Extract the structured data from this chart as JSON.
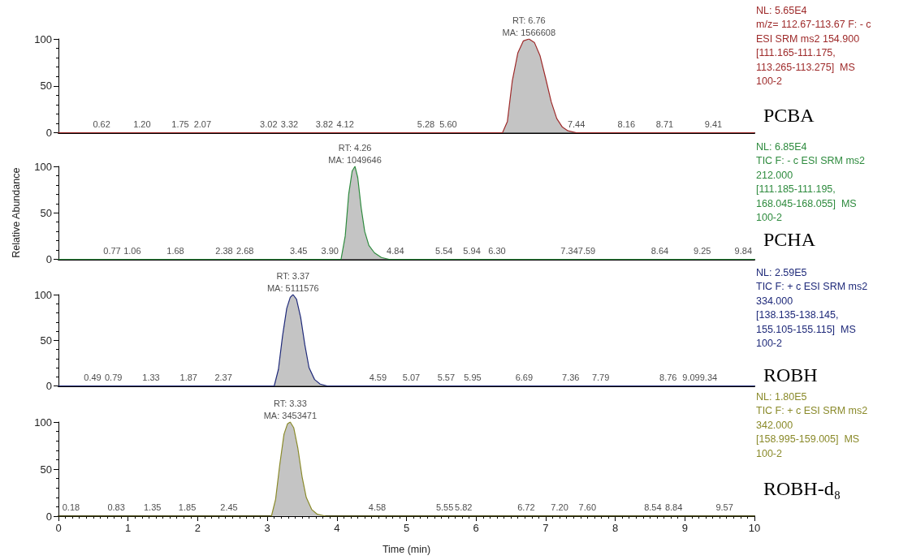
{
  "chart_data": [
    {
      "type": "area",
      "x": [
        0,
        6.38,
        6.45,
        6.52,
        6.6,
        6.68,
        6.76,
        6.84,
        6.92,
        7.0,
        7.08,
        7.16,
        7.24,
        7.32,
        7.44,
        10
      ],
      "xlim": [
        0,
        10
      ],
      "xticks": [
        0,
        1,
        2,
        3,
        4,
        5,
        6,
        7,
        8,
        9,
        10
      ],
      "ylim": [
        0,
        100
      ],
      "yticks": [
        0,
        50,
        100
      ],
      "tick_labels": "y",
      "grid": false,
      "legend": false,
      "series": [
        {
          "name": "PCBA",
          "color": "#9e2a2a",
          "values": [
            0,
            0,
            12,
            55,
            85,
            98,
            100,
            96,
            82,
            58,
            33,
            15,
            6,
            2,
            0,
            0
          ]
        }
      ],
      "annotations": [
        {
          "text": "RT: 6.76",
          "x": 6.76,
          "y": 100
        },
        {
          "text": "MA: 1566608",
          "x": 6.76,
          "y": 100
        },
        {
          "text": "0.62",
          "x": 0.62,
          "y": 2
        },
        {
          "text": "1.20",
          "x": 1.2,
          "y": 2
        },
        {
          "text": "1.75",
          "x": 1.75,
          "y": 2
        },
        {
          "text": "2.07",
          "x": 2.07,
          "y": 2
        },
        {
          "text": "3.02",
          "x": 3.02,
          "y": 2
        },
        {
          "text": "3.32",
          "x": 3.32,
          "y": 2
        },
        {
          "text": "3.82",
          "x": 3.82,
          "y": 2
        },
        {
          "text": "4.12",
          "x": 4.12,
          "y": 2
        },
        {
          "text": "5.28",
          "x": 5.28,
          "y": 2
        },
        {
          "text": "5.60",
          "x": 5.6,
          "y": 2
        },
        {
          "text": "7.44",
          "x": 7.44,
          "y": 2
        },
        {
          "text": "8.16",
          "x": 8.16,
          "y": 2
        },
        {
          "text": "8.71",
          "x": 8.71,
          "y": 2
        },
        {
          "text": "9.41",
          "x": 9.41,
          "y": 2
        },
        "NL: 5.65E4",
        "m/z= 112.67-113.67 F: - c",
        "ESI SRM ms2 154.900",
        "[111.165-111.175,",
        "113.265-113.275]  MS",
        "100-2"
      ]
    },
    {
      "type": "area",
      "x": [
        0,
        4.06,
        4.12,
        4.17,
        4.22,
        4.26,
        4.3,
        4.35,
        4.4,
        4.46,
        4.54,
        4.64,
        4.75,
        10
      ],
      "xlim": [
        0,
        10
      ],
      "xticks": [
        0,
        1,
        2,
        3,
        4,
        5,
        6,
        7,
        8,
        9,
        10
      ],
      "ylim": [
        0,
        100
      ],
      "yticks": [
        0,
        50,
        100
      ],
      "tick_labels": "y",
      "grid": false,
      "legend": false,
      "ylabel": "Relative Abundance",
      "series": [
        {
          "name": "PCHA",
          "color": "#2e8b3e",
          "values": [
            0,
            0,
            25,
            70,
            95,
            100,
            88,
            55,
            30,
            15,
            7,
            2,
            0,
            0
          ]
        }
      ],
      "annotations": [
        {
          "text": "RT: 4.26",
          "x": 4.26,
          "y": 100
        },
        {
          "text": "MA: 1049646",
          "x": 4.26,
          "y": 100
        },
        {
          "text": "0.77",
          "x": 0.77,
          "y": 2
        },
        {
          "text": "1.06",
          "x": 1.06,
          "y": 2
        },
        {
          "text": "1.68",
          "x": 1.68,
          "y": 2
        },
        {
          "text": "2.38",
          "x": 2.38,
          "y": 2
        },
        {
          "text": "2.68",
          "x": 2.68,
          "y": 2
        },
        {
          "text": "3.45",
          "x": 3.45,
          "y": 2
        },
        {
          "text": "3.90",
          "x": 3.9,
          "y": 2
        },
        {
          "text": "4.84",
          "x": 4.84,
          "y": 2
        },
        {
          "text": "5.54",
          "x": 5.54,
          "y": 2
        },
        {
          "text": "5.94",
          "x": 5.94,
          "y": 2
        },
        {
          "text": "6.30",
          "x": 6.3,
          "y": 2
        },
        {
          "text": "7.34",
          "x": 7.34,
          "y": 2
        },
        {
          "text": "7.59",
          "x": 7.59,
          "y": 2
        },
        {
          "text": "8.64",
          "x": 8.64,
          "y": 2
        },
        {
          "text": "9.25",
          "x": 9.25,
          "y": 2
        },
        {
          "text": "9.84",
          "x": 9.84,
          "y": 2
        },
        "NL: 6.85E4",
        "TIC F: - c ESI SRM ms2",
        "212.000",
        "[111.185-111.195,",
        "168.045-168.055]  MS",
        "100-2"
      ]
    },
    {
      "type": "area",
      "x": [
        0,
        3.1,
        3.16,
        3.22,
        3.28,
        3.33,
        3.37,
        3.42,
        3.48,
        3.54,
        3.6,
        3.68,
        3.76,
        3.86,
        10
      ],
      "xlim": [
        0,
        10
      ],
      "xticks": [
        0,
        1,
        2,
        3,
        4,
        5,
        6,
        7,
        8,
        9,
        10
      ],
      "ylim": [
        0,
        100
      ],
      "yticks": [
        0,
        50,
        100
      ],
      "tick_labels": "y",
      "grid": false,
      "legend": false,
      "series": [
        {
          "name": "ROBH",
          "color": "#1f2a7a",
          "values": [
            0,
            0,
            18,
            55,
            85,
            97,
            100,
            95,
            75,
            45,
            20,
            7,
            2,
            0,
            0
          ]
        }
      ],
      "annotations": [
        {
          "text": "RT: 3.37",
          "x": 3.37,
          "y": 100
        },
        {
          "text": "MA: 5111576",
          "x": 3.37,
          "y": 100
        },
        {
          "text": "0.49",
          "x": 0.49,
          "y": 2
        },
        {
          "text": "0.79",
          "x": 0.79,
          "y": 2
        },
        {
          "text": "1.33",
          "x": 1.33,
          "y": 2
        },
        {
          "text": "1.87",
          "x": 1.87,
          "y": 2
        },
        {
          "text": "2.37",
          "x": 2.37,
          "y": 2
        },
        {
          "text": "4.59",
          "x": 4.59,
          "y": 2
        },
        {
          "text": "5.07",
          "x": 5.07,
          "y": 2
        },
        {
          "text": "5.57",
          "x": 5.57,
          "y": 2
        },
        {
          "text": "5.95",
          "x": 5.95,
          "y": 2
        },
        {
          "text": "6.69",
          "x": 6.69,
          "y": 2
        },
        {
          "text": "7.36",
          "x": 7.36,
          "y": 2
        },
        {
          "text": "7.79",
          "x": 7.79,
          "y": 2
        },
        {
          "text": "8.76",
          "x": 8.76,
          "y": 2
        },
        {
          "text": "9.09",
          "x": 9.09,
          "y": 2
        },
        {
          "text": "9.34",
          "x": 9.34,
          "y": 2
        },
        "NL: 2.59E5",
        "TIC F: + c ESI SRM ms2",
        "334.000",
        "[138.135-138.145,",
        "155.105-155.115]  MS",
        "100-2"
      ]
    },
    {
      "type": "area",
      "x": [
        0,
        3.06,
        3.12,
        3.18,
        3.24,
        3.29,
        3.33,
        3.38,
        3.44,
        3.5,
        3.56,
        3.64,
        3.72,
        3.84,
        10
      ],
      "xlim": [
        0,
        10
      ],
      "xticks": [
        0,
        1,
        2,
        3,
        4,
        5,
        6,
        7,
        8,
        9,
        10
      ],
      "ylim": [
        0,
        100
      ],
      "yticks": [
        0,
        50,
        100
      ],
      "grid": false,
      "legend": false,
      "xlabel": "Time (min)",
      "series": [
        {
          "name": "ROBH-d₈",
          "color": "#8a8a2a",
          "values": [
            0,
            0,
            18,
            55,
            87,
            98,
            100,
            94,
            72,
            42,
            20,
            7,
            2,
            0,
            0
          ]
        }
      ],
      "annotations": [
        {
          "text": "RT: 3.33",
          "x": 3.33,
          "y": 100
        },
        {
          "text": "MA: 3453471",
          "x": 3.33,
          "y": 100
        },
        {
          "text": "0.18",
          "x": 0.18,
          "y": 2
        },
        {
          "text": "0.83",
          "x": 0.83,
          "y": 2
        },
        {
          "text": "1.35",
          "x": 1.35,
          "y": 2
        },
        {
          "text": "1.85",
          "x": 1.85,
          "y": 2
        },
        {
          "text": "2.45",
          "x": 2.45,
          "y": 2
        },
        {
          "text": "4.58",
          "x": 4.58,
          "y": 2
        },
        {
          "text": "5.55",
          "x": 5.55,
          "y": 2
        },
        {
          "text": "5.82",
          "x": 5.82,
          "y": 2
        },
        {
          "text": "6.72",
          "x": 6.72,
          "y": 2
        },
        {
          "text": "7.20",
          "x": 7.2,
          "y": 2
        },
        {
          "text": "7.60",
          "x": 7.6,
          "y": 2
        },
        {
          "text": "8.54",
          "x": 8.54,
          "y": 2
        },
        {
          "text": "8.84",
          "x": 8.84,
          "y": 2
        },
        {
          "text": "9.57",
          "x": 9.57,
          "y": 2
        },
        "NL: 1.80E5",
        "TIC F: + c ESI SRM ms2",
        "342.000",
        "[158.995-159.005]  MS",
        "100-2"
      ]
    }
  ]
}
